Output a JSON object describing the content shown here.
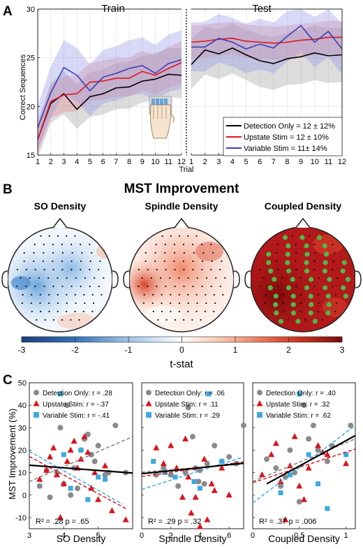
{
  "panels": {
    "A": "A",
    "B": "B",
    "C": "C"
  },
  "colors": {
    "detection": "#000000",
    "upstate": "#e0141e",
    "variable": "#3a3fb4",
    "detection_band": "#9a9a9a",
    "upstate_band": "#e88a8e",
    "variable_band": "#8f93e6",
    "scatter_detection": "#8a8a8a",
    "scatter_upstate": "#d9141e",
    "scatter_variable": "#3fa9df",
    "green_dot": "#52b748"
  },
  "chart_data": [
    {
      "id": "A-train",
      "type": "line",
      "title": "Train",
      "ylabel": "Correct Sequences",
      "xlabel": "Trial",
      "x": [
        1,
        2,
        3,
        4,
        5,
        6,
        7,
        8,
        9,
        10,
        11,
        12
      ],
      "xlim": [
        1,
        12
      ],
      "ylim": [
        15,
        30
      ],
      "yticks": [
        15,
        20,
        25,
        30
      ],
      "grid": true,
      "series": [
        {
          "key": "detection",
          "values": [
            16.6,
            20.3,
            21.3,
            19.7,
            21.0,
            21.3,
            21.9,
            22.0,
            22.6,
            22.8,
            23.3,
            23.2
          ],
          "band": [
            [
              14.7,
              18.4
            ],
            [
              18.3,
              22.4
            ],
            [
              19.2,
              23.6
            ],
            [
              17.7,
              22.2
            ],
            [
              18.9,
              23.5
            ],
            [
              19.2,
              23.8
            ],
            [
              19.7,
              24.4
            ],
            [
              19.8,
              24.6
            ],
            [
              20.4,
              25.2
            ],
            [
              20.6,
              25.5
            ],
            [
              21.0,
              26.0
            ],
            [
              20.8,
              26.0
            ]
          ]
        },
        {
          "key": "upstate",
          "values": [
            16.6,
            20.5,
            21.2,
            21.3,
            22.5,
            22.6,
            22.9,
            22.9,
            23.6,
            23.2,
            23.9,
            24.5
          ],
          "band": [
            [
              15.2,
              18.1
            ],
            [
              18.8,
              22.3
            ],
            [
              19.4,
              23.1
            ],
            [
              19.5,
              23.2
            ],
            [
              20.6,
              24.5
            ],
            [
              20.7,
              24.7
            ],
            [
              21.0,
              25.0
            ],
            [
              21.0,
              25.0
            ],
            [
              21.7,
              25.7
            ],
            [
              21.2,
              25.3
            ],
            [
              21.9,
              26.1
            ],
            [
              22.4,
              26.7
            ]
          ]
        },
        {
          "key": "variable",
          "values": [
            17.8,
            21.4,
            24.0,
            23.2,
            21.6,
            23.0,
            23.4,
            23.9,
            24.2,
            23.4,
            24.4,
            24.8
          ],
          "band": [
            [
              15.6,
              20.1
            ],
            [
              18.9,
              24.1
            ],
            [
              21.2,
              26.8
            ],
            [
              20.5,
              26.0
            ],
            [
              19.0,
              24.3
            ],
            [
              20.3,
              25.8
            ],
            [
              20.6,
              26.2
            ],
            [
              21.1,
              26.8
            ],
            [
              21.3,
              27.1
            ],
            [
              20.6,
              26.3
            ],
            [
              21.5,
              27.4
            ],
            [
              21.8,
              27.8
            ]
          ]
        }
      ]
    },
    {
      "id": "A-test",
      "type": "line",
      "title": "Test",
      "xlabel": "Trial",
      "x": [
        1,
        2,
        3,
        4,
        5,
        6,
        7,
        8,
        9,
        10,
        11,
        12
      ],
      "xlim": [
        1,
        12
      ],
      "ylim": [
        15,
        30
      ],
      "grid": true,
      "series": [
        {
          "key": "detection",
          "values": [
            24.3,
            25.8,
            25.4,
            26.0,
            25.3,
            24.7,
            24.4,
            24.9,
            25.1,
            25.5,
            25.2,
            25.3
          ],
          "band": [
            [
              21.8,
              26.9
            ],
            [
              23.3,
              28.2
            ],
            [
              22.8,
              27.9
            ],
            [
              23.4,
              28.5
            ],
            [
              22.7,
              27.9
            ],
            [
              22.0,
              27.4
            ],
            [
              21.7,
              27.1
            ],
            [
              22.2,
              27.6
            ],
            [
              22.3,
              27.9
            ],
            [
              22.7,
              28.3
            ],
            [
              22.4,
              28.0
            ],
            [
              22.5,
              28.1
            ]
          ]
        },
        {
          "key": "upstate",
          "values": [
            26.6,
            26.7,
            26.9,
            27.0,
            26.7,
            26.6,
            26.5,
            26.6,
            26.8,
            26.9,
            27.1,
            27.1
          ],
          "band": [
            [
              25.0,
              28.3
            ],
            [
              25.0,
              28.4
            ],
            [
              25.2,
              28.6
            ],
            [
              25.3,
              28.7
            ],
            [
              25.0,
              28.4
            ],
            [
              24.9,
              28.3
            ],
            [
              24.8,
              28.2
            ],
            [
              24.9,
              28.3
            ],
            [
              25.1,
              28.5
            ],
            [
              25.2,
              28.6
            ],
            [
              25.4,
              28.8
            ],
            [
              25.4,
              28.8
            ]
          ]
        },
        {
          "key": "variable",
          "values": [
            26.1,
            26.1,
            27.0,
            26.6,
            25.9,
            26.4,
            26.0,
            27.2,
            28.3,
            26.6,
            27.7,
            25.9
          ],
          "band": [
            [
              23.6,
              28.6
            ],
            [
              23.6,
              28.7
            ],
            [
              24.5,
              29.5
            ],
            [
              24.1,
              29.1
            ],
            [
              23.4,
              28.5
            ],
            [
              23.8,
              29.0
            ],
            [
              23.4,
              28.6
            ],
            [
              24.6,
              29.8
            ],
            [
              25.6,
              30.0
            ],
            [
              24.0,
              29.2
            ],
            [
              25.1,
              30.0
            ],
            [
              23.3,
              28.5
            ]
          ]
        }
      ]
    },
    {
      "id": "B-topomaps",
      "type": "heatmap",
      "title": "MST Improvement",
      "maps": [
        {
          "title": "SO Density",
          "scheme": "blue"
        },
        {
          "title": "Spindle Density",
          "scheme": "red"
        },
        {
          "title": "Coupled Density",
          "scheme": "dark"
        }
      ],
      "colorbar": {
        "label": "t-stat",
        "ticks": [
          "-3",
          "-2",
          "-1",
          "0",
          "1",
          "2",
          "3"
        ],
        "range": [
          -3,
          3
        ]
      }
    },
    {
      "id": "C-so",
      "type": "scatter",
      "xlabel": "SO Density",
      "ylabel": "MST Improvement (%)",
      "xlim": [
        3,
        6
      ],
      "ylim": [
        -15,
        50
      ],
      "xticks": [
        3,
        4,
        5
      ],
      "yticks": [
        -10,
        0,
        10,
        20,
        30,
        40,
        50
      ],
      "legend": [
        "Detection Only: r = .28",
        "Upstate Stim: r = -.37",
        "Variable Stim: r = -.41"
      ],
      "stat": "R² = .28 p = .65",
      "fit": {
        "black": [
          [
            3.0,
            13.3
          ],
          [
            6.0,
            9.8
          ]
        ],
        "gray": [
          [
            3.0,
            6.0
          ],
          [
            6.0,
            26.0
          ]
        ],
        "red": [
          [
            3.0,
            17.2
          ],
          [
            5.8,
            -6.0
          ]
        ],
        "blue": [
          [
            3.0,
            19.5
          ],
          [
            5.7,
            -4.0
          ]
        ]
      },
      "points": {
        "detection": [
          [
            3.3,
            4
          ],
          [
            3.5,
            11
          ],
          [
            3.6,
            -1
          ],
          [
            3.8,
            10
          ],
          [
            3.9,
            30
          ],
          [
            4.0,
            5
          ],
          [
            4.1,
            40
          ],
          [
            4.2,
            0
          ],
          [
            4.3,
            12
          ],
          [
            4.4,
            3
          ],
          [
            4.5,
            20
          ],
          [
            4.6,
            25
          ],
          [
            4.7,
            27
          ],
          [
            4.8,
            18
          ],
          [
            4.9,
            15
          ],
          [
            5.0,
            22
          ],
          [
            5.2,
            9
          ],
          [
            5.3,
            10
          ],
          [
            5.5,
            31
          ],
          [
            5.8,
            10
          ]
        ],
        "upstate": [
          [
            3.3,
            7
          ],
          [
            3.5,
            11
          ],
          [
            3.6,
            17
          ],
          [
            3.7,
            21
          ],
          [
            3.8,
            9
          ],
          [
            3.9,
            -10
          ],
          [
            4.0,
            5
          ],
          [
            4.1,
            15
          ],
          [
            4.2,
            20
          ],
          [
            4.3,
            24
          ],
          [
            4.4,
            12
          ],
          [
            4.5,
            16
          ],
          [
            4.6,
            26
          ],
          [
            4.7,
            19
          ],
          [
            4.8,
            3
          ],
          [
            4.9,
            10
          ],
          [
            5.0,
            -2
          ],
          [
            5.2,
            13
          ],
          [
            5.4,
            -7
          ],
          [
            5.8,
            -11
          ]
        ],
        "variable": [
          [
            3.9,
            45
          ],
          [
            4.0,
            18
          ],
          [
            4.2,
            3
          ],
          [
            4.5,
            20
          ],
          [
            4.7,
            -2
          ],
          [
            5.0,
            8
          ],
          [
            5.2,
            7
          ]
        ]
      }
    },
    {
      "id": "C-spindle",
      "type": "scatter",
      "xlabel": "Spindle Density",
      "xlim": [
        0,
        7
      ],
      "ylim": [
        -15,
        50
      ],
      "xticks": [
        0,
        2,
        4,
        6
      ],
      "legend": [
        "Detection Only: r = .06",
        "Upstate Stim: r = .11",
        "Variable Stim: r = .29"
      ],
      "stat": "R² = .29 p = .32",
      "fit": {
        "black": [
          [
            0.0,
            9.5
          ],
          [
            7.0,
            14.2
          ]
        ],
        "gray": [
          [
            0.0,
            10.2
          ],
          [
            7.0,
            13.8
          ]
        ],
        "red": [
          [
            0.0,
            8.2
          ],
          [
            7.0,
            14.8
          ]
        ],
        "blue": [
          [
            0.0,
            2.5
          ],
          [
            7.0,
            17.0
          ]
        ]
      },
      "points": {
        "detection": [
          [
            1.0,
            9
          ],
          [
            1.5,
            12
          ],
          [
            2.0,
            9
          ],
          [
            2.5,
            4
          ],
          [
            3.0,
            10
          ],
          [
            3.2,
            39
          ],
          [
            3.5,
            26
          ],
          [
            3.7,
            12
          ],
          [
            3.9,
            6
          ],
          [
            4.0,
            11
          ],
          [
            4.3,
            5
          ],
          [
            4.5,
            14
          ],
          [
            5.0,
            22
          ],
          [
            5.5,
            15
          ],
          [
            6.0,
            17
          ],
          [
            6.5,
            14
          ],
          [
            7.0,
            31
          ]
        ],
        "upstate": [
          [
            1.0,
            21
          ],
          [
            1.5,
            14
          ],
          [
            2.0,
            22
          ],
          [
            2.4,
            12
          ],
          [
            2.8,
            -1
          ],
          [
            3.0,
            25
          ],
          [
            3.2,
            8
          ],
          [
            3.4,
            -8
          ],
          [
            3.7,
            -1
          ],
          [
            4.0,
            -14
          ],
          [
            4.3,
            16
          ],
          [
            4.5,
            -11
          ],
          [
            4.8,
            5
          ],
          [
            5.0,
            2
          ],
          [
            5.5,
            12
          ],
          [
            6.0,
            0
          ]
        ],
        "variable": [
          [
            0.8,
            15
          ],
          [
            1.6,
            10
          ],
          [
            2.3,
            8
          ],
          [
            3.6,
            6
          ],
          [
            4.0,
            3
          ],
          [
            4.6,
            45
          ],
          [
            5.5,
            15
          ]
        ]
      }
    },
    {
      "id": "C-coupled",
      "type": "scatter",
      "xlabel": "Coupled Density",
      "xlim": [
        0,
        1.1
      ],
      "ylim": [
        -15,
        50
      ],
      "xticks": [
        0,
        0.5,
        1
      ],
      "legend": [
        "Detection Only: r = .40",
        "Upstate Stim: r = .32",
        "Variable Stim: r = .62"
      ],
      "stat": "R² = .37 p = .006",
      "fit": {
        "black": [
          [
            0.15,
            5.0
          ],
          [
            1.1,
            26.5
          ]
        ],
        "gray": [
          [
            0.0,
            6.0
          ],
          [
            1.1,
            25.0
          ]
        ],
        "red": [
          [
            0.0,
            5.5
          ],
          [
            1.1,
            20.5
          ]
        ],
        "blue": [
          [
            0.0,
            -3.5
          ],
          [
            1.1,
            31.0
          ]
        ]
      },
      "points": {
        "detection": [
          [
            0.15,
            16
          ],
          [
            0.25,
            12
          ],
          [
            0.3,
            4
          ],
          [
            0.35,
            8
          ],
          [
            0.4,
            20
          ],
          [
            0.45,
            10
          ],
          [
            0.5,
            -3
          ],
          [
            0.55,
            40
          ],
          [
            0.6,
            25
          ],
          [
            0.65,
            31
          ],
          [
            0.7,
            20
          ],
          [
            0.8,
            15
          ],
          [
            0.85,
            22
          ],
          [
            1.05,
            31
          ]
        ],
        "upstate": [
          [
            0.1,
            9
          ],
          [
            0.2,
            18
          ],
          [
            0.25,
            23
          ],
          [
            0.3,
            6
          ],
          [
            0.35,
            -11
          ],
          [
            0.4,
            13
          ],
          [
            0.45,
            26
          ],
          [
            0.5,
            4
          ],
          [
            0.55,
            -2
          ],
          [
            0.6,
            12
          ],
          [
            0.7,
            22
          ],
          [
            0.75,
            19
          ],
          [
            0.8,
            18
          ],
          [
            1.0,
            14
          ]
        ],
        "variable": [
          [
            0.3,
            1
          ],
          [
            0.4,
            9
          ],
          [
            0.5,
            45
          ],
          [
            0.6,
            18
          ],
          [
            0.7,
            5
          ],
          [
            0.8,
            -6
          ],
          [
            1.0,
            18
          ]
        ]
      }
    }
  ],
  "legendA": {
    "detection": "Detection Only = 12 ± 12%",
    "upstate": "Upstate Stim = 12 ± 10%",
    "variable": "Variable Stim = 11± 14%"
  }
}
